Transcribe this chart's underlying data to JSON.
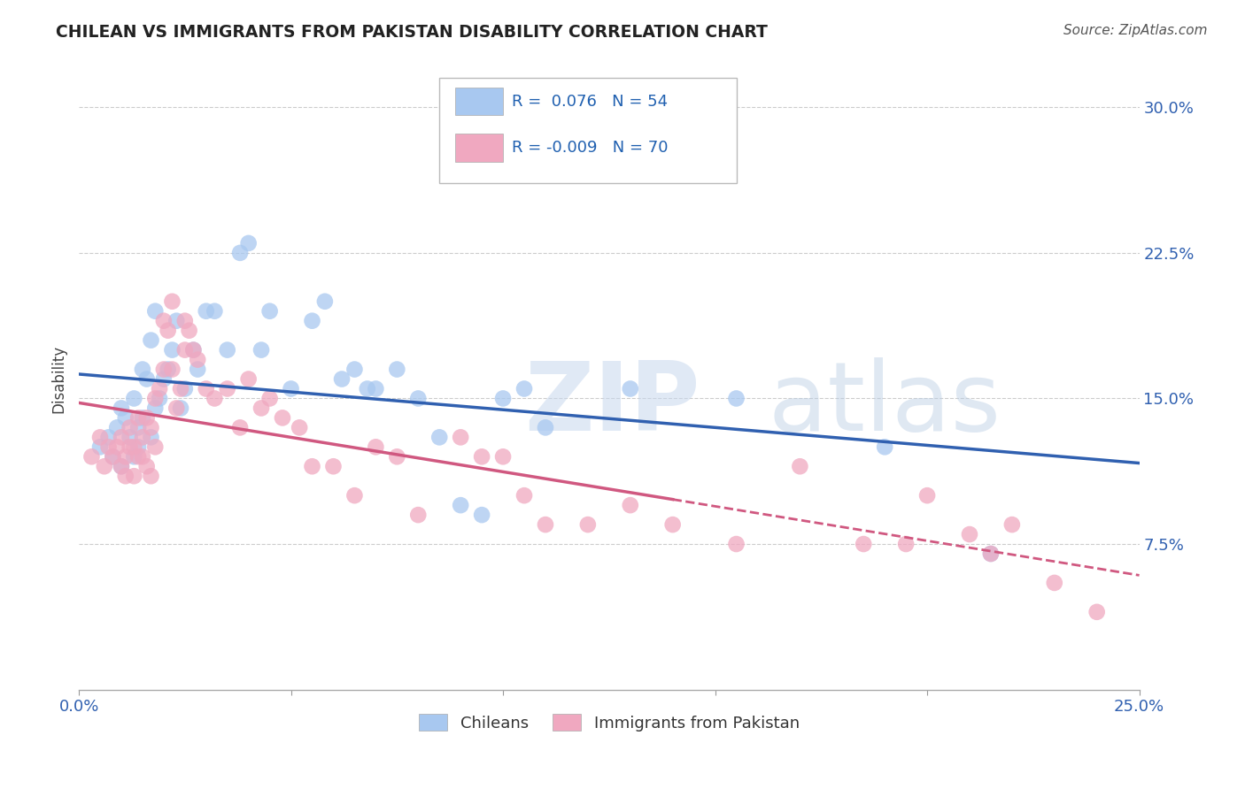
{
  "title": "CHILEAN VS IMMIGRANTS FROM PAKISTAN DISABILITY CORRELATION CHART",
  "source": "Source: ZipAtlas.com",
  "ylabel": "Disability",
  "ytick_labels": [
    "7.5%",
    "15.0%",
    "22.5%",
    "30.0%"
  ],
  "ytick_values": [
    0.075,
    0.15,
    0.225,
    0.3
  ],
  "xlim": [
    0.0,
    0.25
  ],
  "ylim": [
    0.0,
    0.32
  ],
  "blue_R": 0.076,
  "blue_N": 54,
  "pink_R": -0.009,
  "pink_N": 70,
  "blue_color": "#a8c8f0",
  "pink_color": "#f0a8c0",
  "blue_line_color": "#3060b0",
  "pink_line_color": "#d05880",
  "legend_blue_label": "Chileans",
  "legend_pink_label": "Immigrants from Pakistan",
  "blue_x": [
    0.005,
    0.007,
    0.008,
    0.009,
    0.01,
    0.01,
    0.011,
    0.012,
    0.013,
    0.013,
    0.014,
    0.014,
    0.015,
    0.015,
    0.016,
    0.017,
    0.017,
    0.018,
    0.018,
    0.019,
    0.02,
    0.021,
    0.022,
    0.023,
    0.024,
    0.025,
    0.027,
    0.028,
    0.03,
    0.032,
    0.035,
    0.038,
    0.04,
    0.043,
    0.045,
    0.05,
    0.055,
    0.058,
    0.062,
    0.065,
    0.068,
    0.07,
    0.075,
    0.08,
    0.085,
    0.09,
    0.095,
    0.1,
    0.105,
    0.11,
    0.13,
    0.155,
    0.19,
    0.215
  ],
  "blue_y": [
    0.125,
    0.13,
    0.12,
    0.135,
    0.145,
    0.115,
    0.14,
    0.13,
    0.12,
    0.15,
    0.135,
    0.125,
    0.165,
    0.14,
    0.16,
    0.13,
    0.18,
    0.145,
    0.195,
    0.15,
    0.16,
    0.165,
    0.175,
    0.19,
    0.145,
    0.155,
    0.175,
    0.165,
    0.195,
    0.195,
    0.175,
    0.225,
    0.23,
    0.175,
    0.195,
    0.155,
    0.19,
    0.2,
    0.16,
    0.165,
    0.155,
    0.155,
    0.165,
    0.15,
    0.13,
    0.095,
    0.09,
    0.15,
    0.155,
    0.135,
    0.155,
    0.15,
    0.125,
    0.07
  ],
  "pink_x": [
    0.003,
    0.005,
    0.006,
    0.007,
    0.008,
    0.009,
    0.01,
    0.01,
    0.011,
    0.011,
    0.012,
    0.012,
    0.013,
    0.013,
    0.014,
    0.014,
    0.015,
    0.015,
    0.016,
    0.016,
    0.017,
    0.017,
    0.018,
    0.018,
    0.019,
    0.02,
    0.02,
    0.021,
    0.022,
    0.022,
    0.023,
    0.024,
    0.025,
    0.025,
    0.026,
    0.027,
    0.028,
    0.03,
    0.032,
    0.035,
    0.038,
    0.04,
    0.043,
    0.045,
    0.048,
    0.052,
    0.055,
    0.06,
    0.065,
    0.07,
    0.075,
    0.08,
    0.09,
    0.095,
    0.1,
    0.105,
    0.11,
    0.12,
    0.13,
    0.14,
    0.155,
    0.17,
    0.185,
    0.195,
    0.2,
    0.21,
    0.215,
    0.22,
    0.23,
    0.24
  ],
  "pink_y": [
    0.12,
    0.13,
    0.115,
    0.125,
    0.12,
    0.125,
    0.115,
    0.13,
    0.12,
    0.11,
    0.125,
    0.135,
    0.11,
    0.125,
    0.12,
    0.14,
    0.13,
    0.12,
    0.115,
    0.14,
    0.135,
    0.11,
    0.125,
    0.15,
    0.155,
    0.165,
    0.19,
    0.185,
    0.2,
    0.165,
    0.145,
    0.155,
    0.175,
    0.19,
    0.185,
    0.175,
    0.17,
    0.155,
    0.15,
    0.155,
    0.135,
    0.16,
    0.145,
    0.15,
    0.14,
    0.135,
    0.115,
    0.115,
    0.1,
    0.125,
    0.12,
    0.09,
    0.13,
    0.12,
    0.12,
    0.1,
    0.085,
    0.085,
    0.095,
    0.085,
    0.075,
    0.115,
    0.075,
    0.075,
    0.1,
    0.08,
    0.07,
    0.085,
    0.055,
    0.04
  ],
  "watermark_zip": "ZIP",
  "watermark_atlas": "atlas",
  "background_color": "#ffffff",
  "grid_color": "#cccccc"
}
